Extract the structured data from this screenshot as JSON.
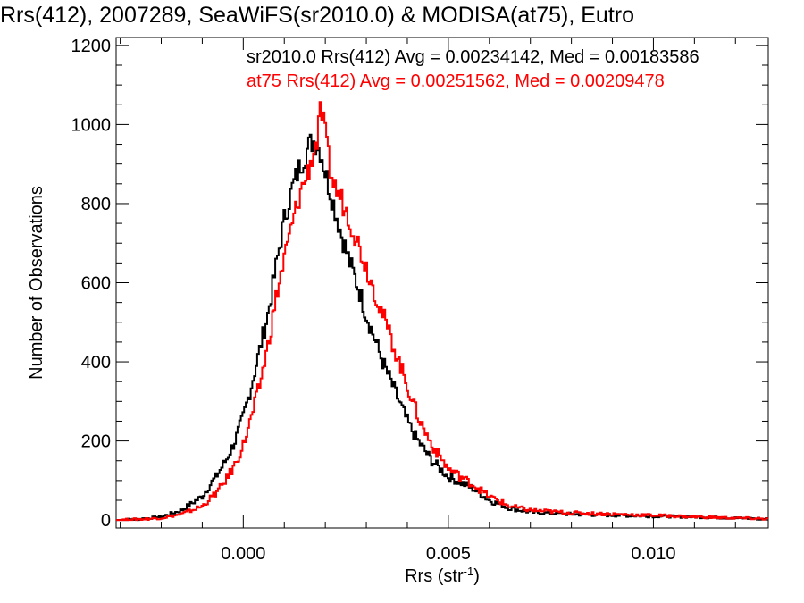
{
  "chart_data": {
    "type": "line",
    "title": "Rrs(412), 2007289, SeaWiFS(sr2010.0) & MODISA(at75), Eutro",
    "xlabel": "Rrs (str",
    "xlabel_sup": "-1",
    "xlabel_close": ")",
    "ylabel": "Number of Observations",
    "xlim": [
      -0.0031,
      0.0128
    ],
    "ylim": [
      -20,
      1220
    ],
    "x_ticks": [
      0.0,
      0.005,
      0.01
    ],
    "x_tick_labels": [
      "0.000",
      "0.005",
      "0.010"
    ],
    "y_ticks": [
      0,
      200,
      400,
      600,
      800,
      1000,
      1200
    ],
    "y_tick_labels": [
      "0",
      "200",
      "400",
      "600",
      "800",
      "1000",
      "1200"
    ],
    "grid": false,
    "legend_position": "top-right",
    "series": [
      {
        "name": "sr2010.0",
        "color": "#000000",
        "legend_text": "sr2010.0 Rrs(412) Avg = 0.00234142, Med = 0.00183586",
        "x": [
          -0.003,
          -0.0025,
          -0.002,
          -0.0015,
          -0.001,
          -0.0008,
          -0.0006,
          -0.0004,
          -0.0002,
          0.0,
          0.0002,
          0.0004,
          0.0006,
          0.0008,
          0.001,
          0.0012,
          0.0014,
          0.0016,
          0.0017,
          0.0018,
          0.0019,
          0.002,
          0.0022,
          0.0024,
          0.0026,
          0.0028,
          0.003,
          0.0032,
          0.0034,
          0.0036,
          0.0038,
          0.004,
          0.0042,
          0.0044,
          0.0046,
          0.0048,
          0.005,
          0.0053,
          0.0056,
          0.006,
          0.0065,
          0.007,
          0.008,
          0.009,
          0.01,
          0.011,
          0.012,
          0.0128
        ],
        "y": [
          0,
          3,
          8,
          25,
          60,
          90,
          120,
          155,
          200,
          260,
          340,
          430,
          520,
          640,
          760,
          840,
          900,
          945,
          960,
          950,
          930,
          880,
          800,
          720,
          650,
          590,
          520,
          460,
          400,
          350,
          300,
          250,
          210,
          180,
          150,
          130,
          110,
          95,
          80,
          50,
          30,
          20,
          15,
          12,
          10,
          8,
          5,
          3
        ]
      },
      {
        "name": "at75",
        "color": "#ff0000",
        "legend_text": "at75 Rrs(412) Avg = 0.00251562, Med = 0.00209478",
        "x": [
          -0.003,
          -0.0025,
          -0.002,
          -0.0015,
          -0.001,
          -0.0008,
          -0.0006,
          -0.0004,
          -0.0002,
          0.0,
          0.0002,
          0.0004,
          0.0006,
          0.0008,
          0.001,
          0.0012,
          0.0014,
          0.0016,
          0.0018,
          0.0019,
          0.002,
          0.0021,
          0.0022,
          0.0024,
          0.0026,
          0.0028,
          0.003,
          0.0032,
          0.0034,
          0.0036,
          0.0038,
          0.004,
          0.0042,
          0.0044,
          0.0046,
          0.0048,
          0.005,
          0.0053,
          0.0056,
          0.006,
          0.0065,
          0.007,
          0.008,
          0.009,
          0.01,
          0.011,
          0.012,
          0.0128
        ],
        "y": [
          0,
          2,
          5,
          15,
          35,
          55,
          75,
          105,
          140,
          190,
          260,
          340,
          440,
          560,
          660,
          750,
          830,
          890,
          960,
          1040,
          970,
          900,
          850,
          810,
          760,
          700,
          640,
          580,
          520,
          460,
          400,
          340,
          280,
          230,
          190,
          160,
          130,
          110,
          90,
          60,
          35,
          25,
          18,
          15,
          12,
          8,
          5,
          3
        ]
      }
    ]
  }
}
